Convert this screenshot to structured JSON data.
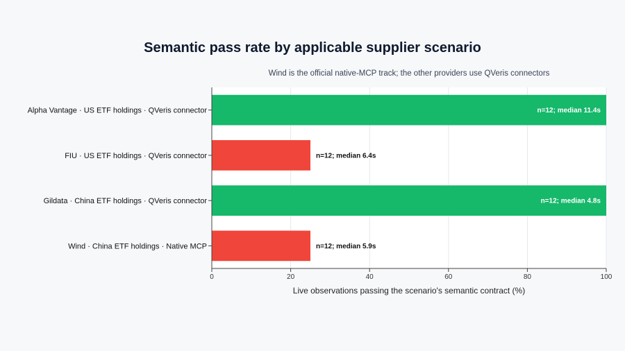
{
  "chart_data": {
    "type": "bar",
    "orientation": "horizontal",
    "title": "Semantic pass rate by applicable supplier scenario",
    "subtitle": "Wind is the official native-MCP track; the other providers use QVeris connectors",
    "xlabel": "Live observations passing the scenario's semantic contract (%)",
    "ylabel": "",
    "xlim": [
      0,
      100
    ],
    "xticks": [
      "0",
      "20",
      "40",
      "60",
      "80",
      "100"
    ],
    "grid": true,
    "categories": [
      "Alpha Vantage · US ETF holdings · QVeris connector",
      "FIU · US ETF holdings · QVeris connector",
      "Gildata · China ETF holdings · QVeris connector",
      "Wind · China ETF holdings · Native MCP"
    ],
    "values": [
      100,
      25,
      100,
      25
    ],
    "bar_colors": [
      "#16b86a",
      "#f0453a",
      "#16b86a",
      "#f0453a"
    ],
    "data_labels": [
      "n=12; median 11.4s",
      "n=12; median 6.4s",
      "n=12; median 4.8s",
      "n=12; median 5.9s"
    ]
  },
  "colors": {
    "pass": "#16b86a",
    "fail": "#f0453a",
    "plot_bg": "#ffffff",
    "page_bg": "#f7f8fa",
    "grid": "#e6e8ec"
  }
}
